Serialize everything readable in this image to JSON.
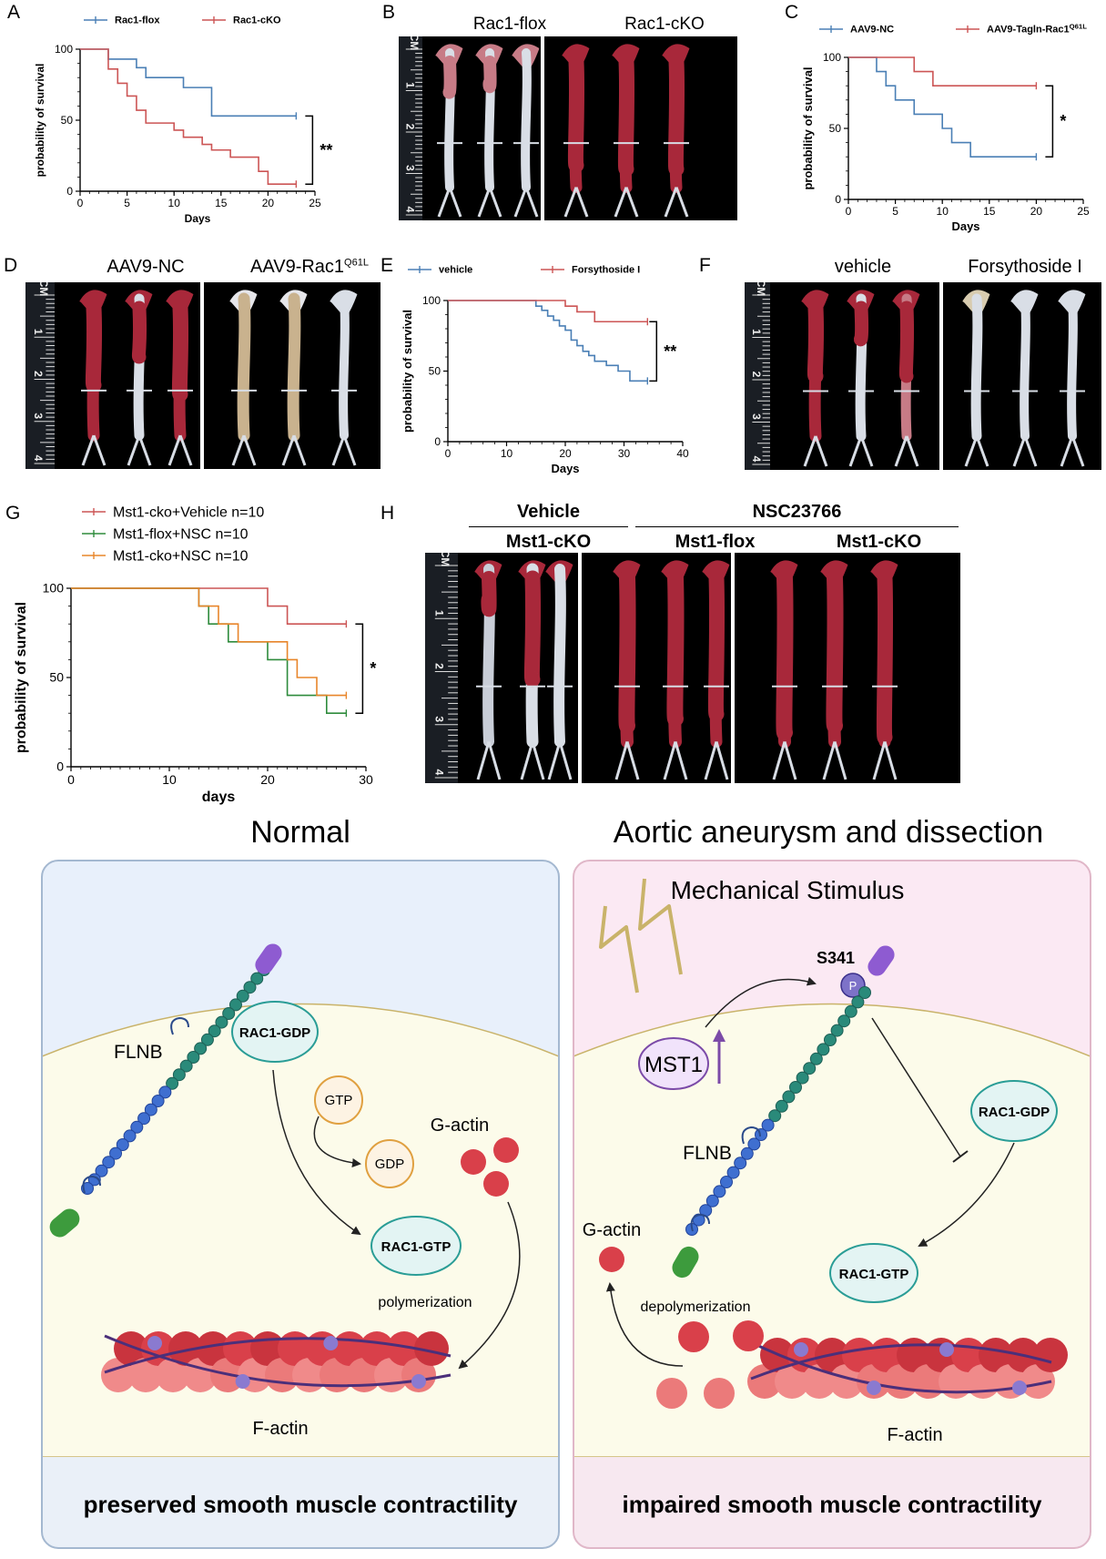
{
  "panels": {
    "A": {
      "letter": "A",
      "chart_data": {
        "type": "line",
        "subtype": "kaplan-meier",
        "xlabel": "Days",
        "ylabel": "probability of survival",
        "xlim": [
          0,
          25
        ],
        "ylim": [
          0,
          100
        ],
        "xticks": [
          "0",
          "5",
          "10",
          "15",
          "20",
          "25"
        ],
        "yticks": [
          "0",
          "50",
          "100"
        ],
        "significance": "**",
        "series": [
          {
            "name": "Rac1-flox",
            "color": "#4a7fb5",
            "x": [
              0,
              3,
              6,
              7,
              11,
              14,
              23
            ],
            "y": [
              100,
              93,
              87,
              80,
              73,
              53,
              53
            ]
          },
          {
            "name": "Rac1-cKO",
            "color": "#cc5555",
            "x": [
              0,
              3,
              4,
              5,
              6,
              7,
              10,
              11,
              13,
              14,
              16,
              19,
              20,
              23
            ],
            "y": [
              100,
              86,
              76,
              67,
              57,
              48,
              43,
              38,
              33,
              29,
              24,
              14,
              5,
              5
            ]
          }
        ]
      }
    },
    "B": {
      "letter": "B",
      "titles": [
        "Rac1-flox",
        "Rac1-cKO"
      ],
      "ruler_unit": "CM",
      "ruler_numbers": [
        "1",
        "2",
        "3",
        "4"
      ]
    },
    "C": {
      "letter": "C",
      "chart_data": {
        "type": "line",
        "subtype": "kaplan-meier",
        "xlabel": "Days",
        "ylabel": "probability of survival",
        "xlim": [
          0,
          25
        ],
        "ylim": [
          0,
          100
        ],
        "xticks": [
          "0",
          "5",
          "10",
          "15",
          "20",
          "25"
        ],
        "yticks": [
          "0",
          "50",
          "100"
        ],
        "significance": "*",
        "series": [
          {
            "name": "AAV9-NC",
            "color": "#4a7fb5",
            "x": [
              0,
              3,
              4,
              5,
              7,
              10,
              11,
              13,
              20
            ],
            "y": [
              100,
              90,
              80,
              70,
              60,
              50,
              40,
              30,
              30
            ]
          },
          {
            "name": "AAV9-Tagln-Rac1",
            "name_sup": "Q61L",
            "color": "#cc5555",
            "x": [
              0,
              7,
              9,
              20
            ],
            "y": [
              100,
              90,
              80,
              80
            ]
          }
        ]
      }
    },
    "D": {
      "letter": "D",
      "titles": [
        "AAV9-NC",
        "AAV9-Rac1"
      ],
      "title2_sup": "Q61L",
      "ruler_unit": "CM",
      "ruler_numbers": [
        "1",
        "2",
        "3",
        "4"
      ]
    },
    "E": {
      "letter": "E",
      "chart_data": {
        "type": "line",
        "subtype": "kaplan-meier",
        "xlabel": "Days",
        "ylabel": "probability of survival",
        "xlim": [
          0,
          40
        ],
        "ylim": [
          0,
          100
        ],
        "xticks": [
          "0",
          "10",
          "20",
          "30",
          "40"
        ],
        "yticks": [
          "0",
          "50",
          "100"
        ],
        "significance": "**",
        "series": [
          {
            "name": "vehicle",
            "color": "#4a7fb5",
            "x": [
              0,
              15,
              16,
              17,
              18,
              19,
              20,
              21,
              22,
              23,
              24,
              25,
              27,
              29,
              31,
              34
            ],
            "y": [
              100,
              96,
              93,
              89,
              86,
              82,
              79,
              72,
              68,
              64,
              61,
              57,
              54,
              50,
              43,
              43
            ]
          },
          {
            "name": "Forsythoside I",
            "color": "#cc5555",
            "x": [
              0,
              20,
              22,
              25,
              34
            ],
            "y": [
              100,
              96,
              92,
              85,
              85
            ]
          }
        ]
      }
    },
    "F": {
      "letter": "F",
      "titles": [
        "vehicle",
        "Forsythoside I"
      ],
      "ruler_unit": "CM",
      "ruler_numbers": [
        "1",
        "2",
        "3",
        "4"
      ]
    },
    "G": {
      "letter": "G",
      "chart_data": {
        "type": "line",
        "subtype": "kaplan-meier",
        "xlabel": "days",
        "ylabel": "probability of survival",
        "xlim": [
          0,
          30
        ],
        "ylim": [
          0,
          100
        ],
        "xticks": [
          "0",
          "10",
          "20",
          "30"
        ],
        "yticks": [
          "0",
          "50",
          "100"
        ],
        "significance": "*",
        "series": [
          {
            "name": "Mst1-cko+Vehicle n=10",
            "color": "#cc5555",
            "x": [
              0,
              20,
              22,
              28
            ],
            "y": [
              100,
              90,
              80,
              80
            ]
          },
          {
            "name": "Mst1-flox+NSC n=10",
            "color": "#2e8b3c",
            "x": [
              0,
              13,
              14,
              16,
              20,
              22,
              26,
              28
            ],
            "y": [
              100,
              90,
              80,
              70,
              60,
              40,
              30,
              30
            ]
          },
          {
            "name": "Mst1-cko+NSC n=10",
            "color": "#e8852a",
            "x": [
              0,
              13,
              15,
              17,
              22,
              23,
              25,
              27,
              28
            ],
            "y": [
              100,
              90,
              80,
              70,
              60,
              50,
              40,
              40,
              40
            ]
          }
        ]
      }
    },
    "H": {
      "letter": "H",
      "group_titles": [
        "Vehicle",
        "NSC23766"
      ],
      "sub_titles": [
        "Mst1-cKO",
        "Mst1-flox",
        "Mst1-cKO"
      ],
      "ruler_unit": "CM",
      "ruler_numbers": [
        "1",
        "2",
        "3",
        "4"
      ]
    }
  },
  "schematic": {
    "normal": {
      "title": "Normal",
      "flnb": "FLNB",
      "rac1_gdp": "RAC1-GDP",
      "gtp": "GTP",
      "gdp": "GDP",
      "g_actin": "G-actin",
      "rac1_gtp": "RAC1-GTP",
      "polymerization": "polymerization",
      "f_actin": "F-actin",
      "caption": "preserved smooth muscle contractility",
      "colors": {
        "top": "#e8f0fb",
        "cell": "#fcfbea",
        "border": "#a4b8d0"
      }
    },
    "disease": {
      "title": "Aortic aneurysm and dissection",
      "stimulus": "Mechanical Stimulus",
      "site": "S341",
      "phospho": "P",
      "mst1": "MST1",
      "flnb": "FLNB",
      "rac1_gdp": "RAC1-GDP",
      "rac1_gtp": "RAC1-GTP",
      "g_actin": "G-actin",
      "depolymerization": "depolymerization",
      "f_actin": "F-actin",
      "caption": "impaired smooth muscle contractility",
      "colors": {
        "top": "#fbe9f3",
        "cell": "#fcfbea",
        "border": "#e0b7c8"
      }
    }
  }
}
